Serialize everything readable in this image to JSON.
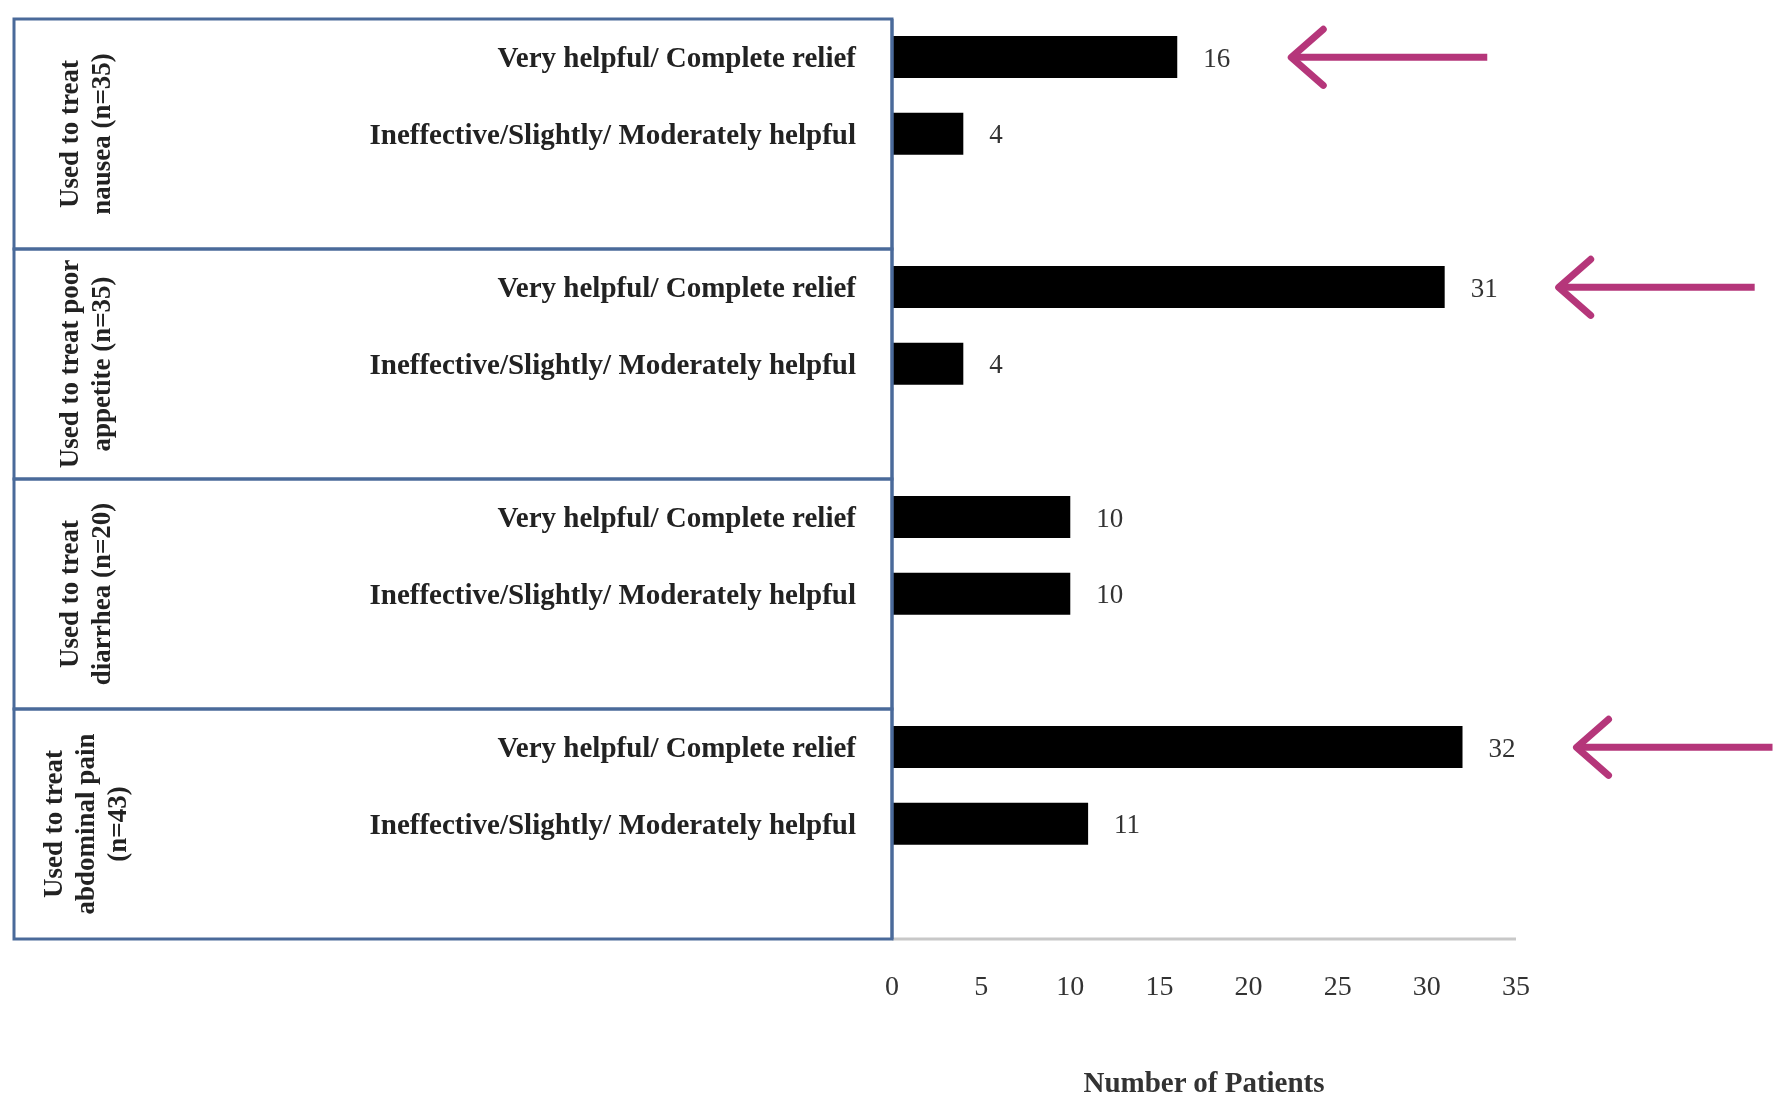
{
  "chart_data": {
    "type": "bar",
    "orientation": "horizontal",
    "xlabel": "Number of Patients",
    "categories": [
      "Very helpful/ Complete relief",
      "Ineffective/Slightly/ Moderately helpful",
      null,
      "Very helpful/ Complete relief",
      "Ineffective/Slightly/ Moderately helpful",
      null,
      "Very helpful/ Complete relief",
      "Ineffective/Slightly/ Moderately helpful",
      null,
      "Very helpful/ Complete relief",
      "Ineffective/Slightly/ Moderately helpful",
      null
    ],
    "values": [
      16,
      4,
      null,
      31,
      4,
      null,
      10,
      10,
      null,
      32,
      11,
      null
    ],
    "color": "#000000",
    "xlim": [
      0,
      35
    ],
    "xticks": [
      0,
      5,
      10,
      15,
      20,
      25,
      30,
      35
    ],
    "grid": false,
    "legend": false,
    "data_labels": true,
    "annotations": [
      "Used to treat nausea (n=35)",
      "Used to treat poor appetite (n=35)",
      "Used to treat diarrhea (n=20)",
      "Used to treat abdominal pain (n=43)"
    ]
  }
}
